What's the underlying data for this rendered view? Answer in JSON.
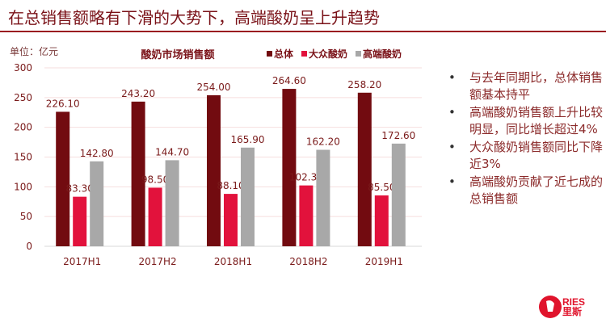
{
  "header": {
    "title": "在总销售额略有下滑的大势下，高端酸奶呈上升趋势"
  },
  "chart_data": {
    "type": "bar",
    "title": "酸奶市场销售额",
    "unit_label": "单位：亿元",
    "categories": [
      "2017H1",
      "2017H2",
      "2018H1",
      "2018H2",
      "2019H1"
    ],
    "series": [
      {
        "name": "总体",
        "color": "#720b10",
        "values": [
          226.1,
          243.2,
          254.0,
          264.6,
          258.2
        ]
      },
      {
        "name": "大众酸奶",
        "color": "#e2123c",
        "values": [
          83.3,
          98.5,
          88.1,
          102.3,
          85.5
        ]
      },
      {
        "name": "高端酸奶",
        "color": "#a8a8a8",
        "values": [
          142.8,
          144.7,
          165.9,
          162.2,
          172.6
        ]
      }
    ],
    "ylim": [
      0,
      300
    ],
    "yticks": [
      0,
      50,
      100,
      150,
      200,
      250,
      300
    ],
    "legend": "top-right",
    "grid": true
  },
  "bullets": [
    "与去年同期比，总体销售额基本持平",
    "高端酸奶销售额上升比较明显，同比增长超过4%",
    "大众酸奶销售额同比下降近3%",
    "高端酸奶贡献了近七成的总销售额"
  ],
  "logo": {
    "en": "RIES",
    "cn": "里斯"
  }
}
